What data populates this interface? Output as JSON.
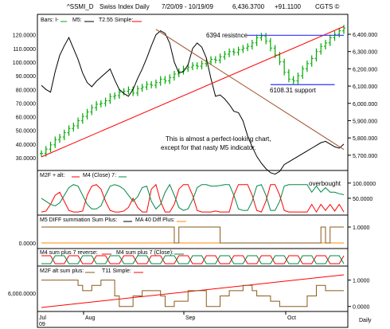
{
  "header": {
    "symbol": "^SSMI_D",
    "name": "Swiss Index Daily",
    "range": "7/20/09 - 10/19/09",
    "price": "6,436.3700",
    "change": "+91.1100",
    "copyright": "CGTS ©"
  },
  "chart_data": [
    {
      "type": "bar",
      "panel": "price",
      "legend": [
        {
          "label": "Bars: I-",
          "color": "#00aa00"
        },
        {
          "label": "M5:",
          "color": "#000000"
        },
        {
          "label": "T2.55 Simple:",
          "color": "#ff0000"
        }
      ],
      "left_axis_ticks": [
        "120.0000",
        "110.0000",
        "100.0000",
        "90.0000",
        "80.0000",
        "70.0000",
        "60.0000",
        "50.0000",
        "40.0000",
        "30.0000"
      ],
      "left_ylim": [
        23,
        128
      ],
      "right_axis_ticks": [
        "6,400.000",
        "6,300.000",
        "6,200.000",
        "6,100.000",
        "6,000.000",
        "5,900.000",
        "5,800.000",
        "5,700.000"
      ],
      "right_ylim": [
        5630,
        6460
      ],
      "bars_close": [
        5710,
        5735,
        5760,
        5790,
        5805,
        5830,
        5855,
        5870,
        5900,
        5925,
        5950,
        5975,
        5995,
        6000,
        6015,
        6040,
        6045,
        6065,
        6070,
        6080,
        6060,
        6085,
        6095,
        6110,
        6105,
        6120,
        6140,
        6130,
        6150,
        6170,
        6185,
        6200,
        6210,
        6220,
        6215,
        6230,
        6240,
        6255,
        6250,
        6270,
        6285,
        6300,
        6295,
        6310,
        6320,
        6330,
        6350,
        6380,
        6390,
        6360,
        6320,
        6280,
        6240,
        6180,
        6140,
        6130,
        6160,
        6200,
        6230,
        6260,
        6300,
        6330,
        6350,
        6380,
        6400,
        6420,
        6436
      ],
      "m5": [
        83,
        80,
        78,
        93,
        105,
        112,
        118,
        110,
        102,
        92,
        85,
        82,
        86,
        89,
        92,
        95,
        87,
        80,
        77,
        75,
        80,
        88,
        95,
        103,
        112,
        120,
        123,
        121,
        114,
        100,
        92,
        93,
        98,
        110,
        114,
        111,
        103,
        88,
        75,
        76,
        73,
        69,
        64,
        63,
        57,
        46,
        38,
        31,
        26,
        22,
        19,
        18,
        20,
        25,
        27,
        29,
        31,
        33,
        35,
        37,
        39,
        41,
        42,
        40,
        38,
        37,
        40
      ],
      "lines": [
        {
          "name": "6394 resistnce",
          "value": 6394,
          "color": "#3333ff"
        },
        {
          "name": "6108.31 support",
          "value": 6108.31,
          "color": "#3333ff"
        }
      ],
      "annotations": [
        "6394 resistnce",
        "6108.31 support",
        "This is almost a perfect-looking chart,",
        "except for that nasty M5 indicator."
      ]
    },
    {
      "type": "line",
      "panel": "M2F",
      "legend": [
        {
          "label": "M2F + alt:",
          "color": "#ff0000"
        },
        {
          "label": "M4 (Close) 7:",
          "color": "#008844"
        }
      ],
      "right_axis_ticks": [
        "100.0000",
        "50.0000"
      ],
      "ylim": [
        0,
        110
      ],
      "annotations": [
        "overbought"
      ],
      "m2f": [
        5,
        8,
        30,
        60,
        70,
        40,
        10,
        5,
        5,
        8,
        60,
        90,
        95,
        80,
        40,
        10,
        5,
        5,
        8,
        20,
        50,
        20,
        5,
        5,
        80,
        95,
        40,
        5,
        5,
        30,
        80,
        95,
        95,
        60,
        10,
        5,
        5,
        5,
        8,
        5,
        5,
        5,
        60,
        95,
        95,
        95,
        60,
        10,
        5,
        40,
        95,
        95,
        60,
        10,
        5,
        5,
        5,
        5,
        5,
        30,
        5,
        30,
        10,
        30,
        8,
        30,
        5
      ],
      "m4": [
        50,
        40,
        30,
        25,
        35,
        60,
        85,
        95,
        90,
        60,
        30,
        15,
        15,
        25,
        60,
        90,
        95,
        90,
        80,
        60,
        40,
        55,
        85,
        90,
        40,
        15,
        30,
        70,
        95,
        60,
        20,
        10,
        15,
        45,
        85,
        95,
        95,
        90,
        90,
        92,
        95,
        95,
        60,
        15,
        10,
        10,
        40,
        90,
        95,
        60,
        10,
        10,
        40,
        90,
        95,
        95,
        95,
        95,
        95,
        70,
        90,
        70,
        85,
        70,
        70,
        65,
        62
      ]
    },
    {
      "type": "line",
      "panel": "M5 DIFF",
      "legend": [
        {
          "label": "M5 DIFF summation Sum Plus:",
          "color": "#000000"
        },
        {
          "label": "MA 40 Diff Plus:",
          "color": "#ff8800"
        }
      ],
      "left_axis_ticks": [
        "0.0000"
      ],
      "right_axis_ticks": [
        "1.0000"
      ],
      "ylim": [
        -0.2,
        1.2
      ],
      "sum_plus": [
        1,
        1,
        1,
        1,
        1,
        1,
        1,
        1,
        1,
        1,
        1,
        1,
        1,
        1,
        1,
        1,
        1,
        1,
        1,
        1,
        1,
        1,
        1,
        1,
        1,
        1,
        1,
        1,
        1,
        0,
        1,
        1,
        1,
        1,
        1,
        1,
        1,
        1,
        1,
        0,
        0,
        0,
        0,
        0,
        0,
        0,
        0,
        0,
        0,
        0,
        0,
        0,
        0,
        0,
        0,
        0,
        0,
        0,
        0,
        0,
        0,
        1,
        0,
        1,
        1,
        1,
        1
      ]
    },
    {
      "type": "line",
      "panel": "M4 sum plus 7",
      "legend": [
        {
          "label": "M4 sum plus 7 reverse:",
          "color": "#ff0000"
        },
        {
          "label": "M4 sum plus 7 (Close):",
          "color": "#008844"
        }
      ],
      "ylim": [
        0,
        1
      ]
    },
    {
      "type": "line",
      "panel": "M2F alt",
      "legend": [
        {
          "label": "M2F alt sum plus:",
          "color": "#8b5a1a"
        },
        {
          "label": "T11 Simple:",
          "color": "#ff0000"
        }
      ],
      "left_axis_ticks": [
        "6,000.0000"
      ],
      "right_axis_ticks": [
        "1.0000",
        "0.0000"
      ],
      "ylim": [
        -0.1,
        1.2
      ],
      "alt_sum": [
        1,
        1,
        1,
        1,
        1,
        1,
        1,
        1,
        0.8,
        0.6,
        0.6,
        0.8,
        0.8,
        1,
        1,
        1,
        0.4,
        0,
        0,
        0,
        0.4,
        0.4,
        0.6,
        0.6,
        0.6,
        0.6,
        0.4,
        0,
        0,
        0.2,
        0.2,
        0.2,
        0.6,
        0.6,
        0.6,
        0.6,
        0,
        0,
        0,
        0.4,
        0.4,
        0.6,
        0.6,
        0.6,
        0.8,
        0.8,
        0.6,
        0.4,
        0.4,
        0.4,
        0.2,
        0.2,
        0,
        0,
        0,
        0,
        0,
        0,
        0.4,
        0.4,
        0.8,
        0.8,
        0.6,
        0.6,
        0.6,
        0.6,
        0.6
      ]
    }
  ],
  "x_axis": {
    "labels": [
      "Jul",
      "Aug",
      "Sep",
      "Oct"
    ],
    "sublabel": "09",
    "period": "Daily"
  }
}
